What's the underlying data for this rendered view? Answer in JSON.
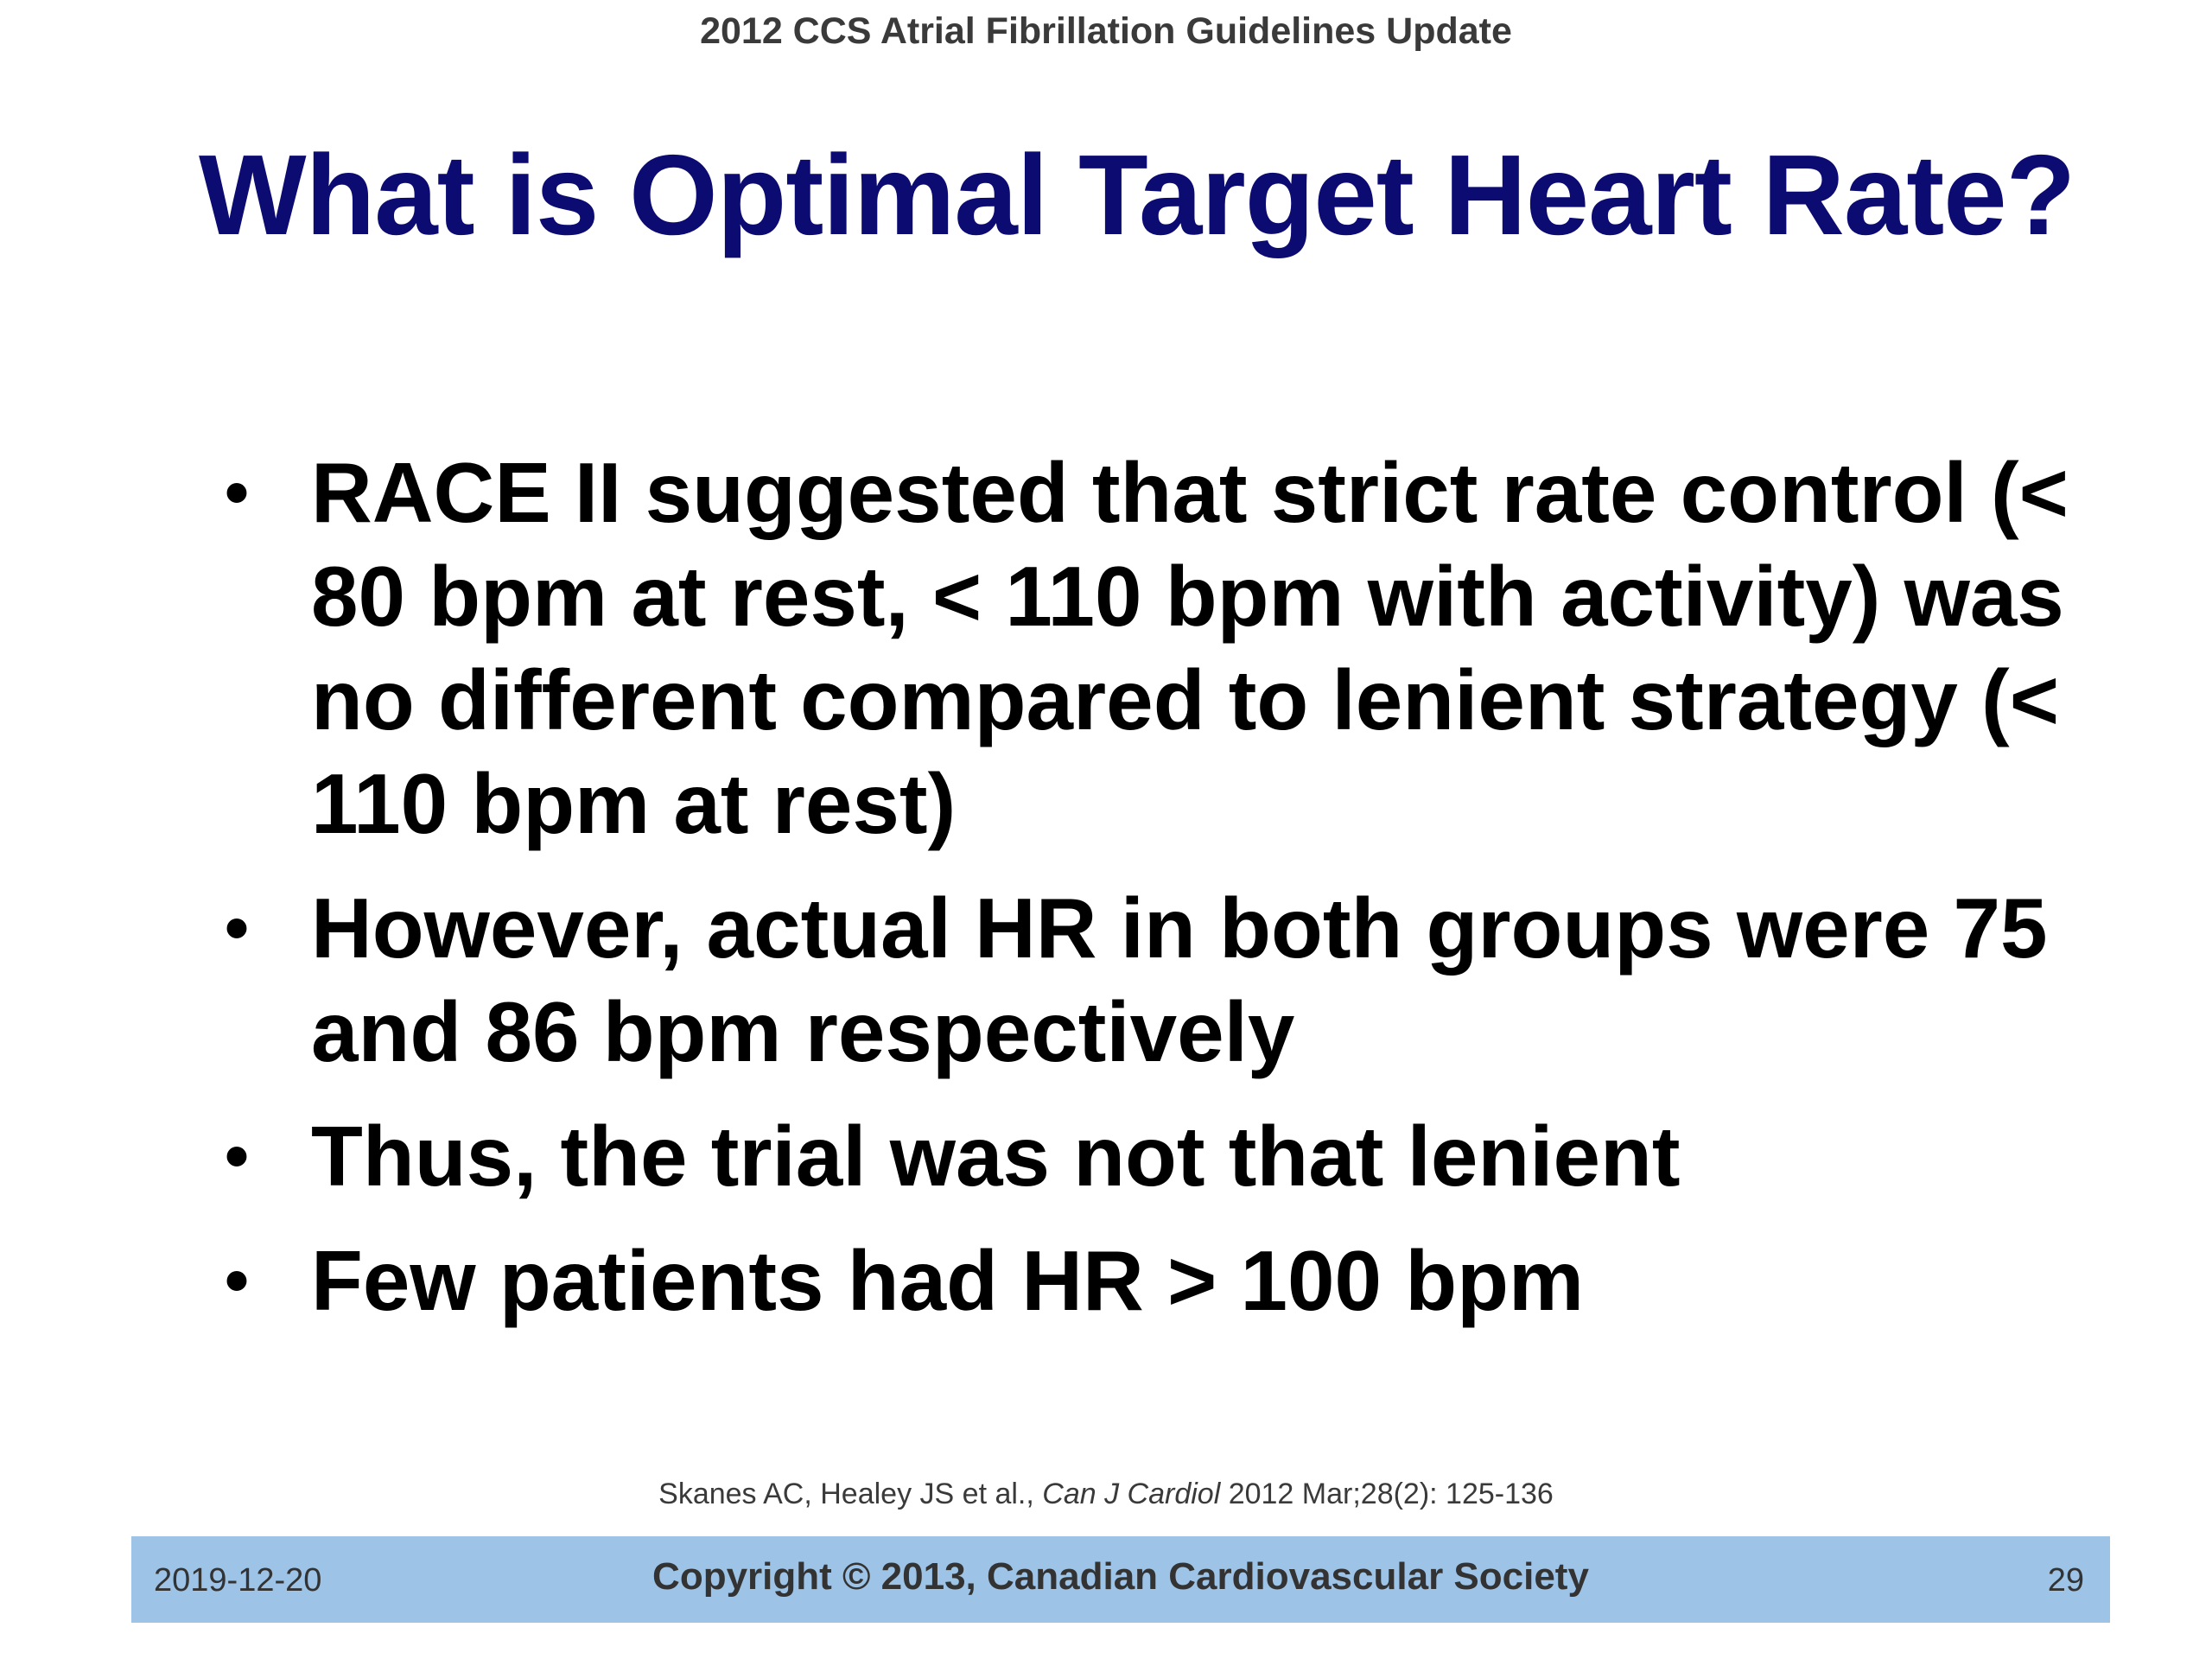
{
  "header": {
    "text": "2012 CCS Atrial Fibrillation Guidelines Update"
  },
  "slide": {
    "title": "What is Optimal Target Heart Rate?",
    "bullet_symbol": "•",
    "bullets": [
      "RACE II suggested that strict rate control (< 80 bpm at rest, < 110 bpm with activity) was no different compared to lenient strategy (< 110 bpm at rest)",
      "However, actual HR in both groups were 75 and 86 bpm respectively",
      "Thus, the trial was not that lenient",
      "Few patients had HR > 100 bpm"
    ]
  },
  "citation": {
    "authors": "Skanes AC, Healey JS et al., ",
    "journal": "Can J Cardiol",
    "details": " 2012 Mar;28(2): 125-136"
  },
  "footer": {
    "date": "2019-12-20",
    "copyright": "Copyright © 2013, Canadian Cardiovascular Society",
    "page": "29",
    "bar_color": "#9dc3e6"
  },
  "colors": {
    "title": "#0b0b72",
    "body_text": "#000000",
    "header_text": "#3a3a3a"
  }
}
